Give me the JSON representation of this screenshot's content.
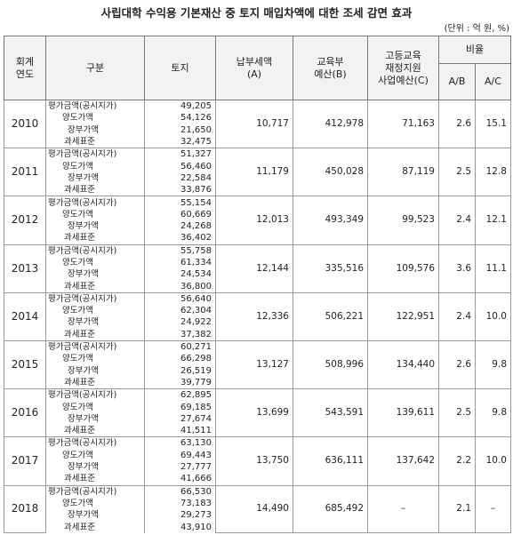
{
  "header": {
    "title": "사립대학 수익용 기본재산 중 토지 매입차액에 대한 조세 감면 효과",
    "unit": "(단위 : 억 원, %)"
  },
  "table": {
    "columns": [
      "회계\n연도",
      "구분",
      "토지",
      "납부세액\n(A)",
      "교육부\n예산(B)",
      "고등교육\n재정지원\n사업예산(C)",
      "비율",
      "A/B",
      "A/C"
    ],
    "rows": [
      {
        "year": "2010",
        "items": [
          [
            "평가금액(공시지가)",
            "49,205"
          ],
          [
            "양도가액",
            "54,126"
          ],
          [
            "장부가액",
            "21,650"
          ],
          [
            "과세표준",
            "32,475"
          ]
        ],
        "a": "10,717",
        "b": "412,978",
        "c": "71,163",
        "ab": "2.6",
        "ac": "15.1"
      },
      {
        "year": "2011",
        "items": [
          [
            "평가금액(공시지가)",
            "51,327"
          ],
          [
            "양도가액",
            "56,460"
          ],
          [
            "장부가액",
            "22,584"
          ],
          [
            "과세표준",
            "33,876"
          ]
        ],
        "a": "11,179",
        "b": "450,028",
        "c": "87,119",
        "ab": "2.5",
        "ac": "12.8"
      },
      {
        "year": "2012",
        "items": [
          [
            "평가금액(공시지가)",
            "55,154"
          ],
          [
            "양도가액",
            "60,669"
          ],
          [
            "장부가액",
            "24,268"
          ],
          [
            "과세표준",
            "36,402"
          ]
        ],
        "a": "12,013",
        "b": "493,349",
        "c": "99,523",
        "ab": "2.4",
        "ac": "12.1"
      },
      {
        "year": "2013",
        "items": [
          [
            "평가금액(공시지가)",
            "55,758"
          ],
          [
            "양도가액",
            "61,334"
          ],
          [
            "장부가액",
            "24,534"
          ],
          [
            "과세표준",
            "36,800"
          ]
        ],
        "a": "12,144",
        "b": "335,516",
        "c": "109,576",
        "ab": "3.6",
        "ac": "11.1"
      },
      {
        "year": "2014",
        "items": [
          [
            "평가금액(공시지가)",
            "56,640"
          ],
          [
            "양도가액",
            "62,304"
          ],
          [
            "장부가액",
            "24,922"
          ],
          [
            "과세표준",
            "37,382"
          ]
        ],
        "a": "12,336",
        "b": "506,221",
        "c": "122,951",
        "ab": "2.4",
        "ac": "10.0"
      },
      {
        "year": "2015",
        "items": [
          [
            "평가금액(공시지가)",
            "60,271"
          ],
          [
            "양도가액",
            "66,298"
          ],
          [
            "장부가액",
            "26,519"
          ],
          [
            "과세표준",
            "39,779"
          ]
        ],
        "a": "13,127",
        "b": "508,996",
        "c": "134,440",
        "ab": "2.6",
        "ac": "9.8"
      },
      {
        "year": "2016",
        "items": [
          [
            "평가금액(공시지가)",
            "62,895"
          ],
          [
            "양도가액",
            "69,185"
          ],
          [
            "장부가액",
            "27,674"
          ],
          [
            "과세표준",
            "41,511"
          ]
        ],
        "a": "13,699",
        "b": "543,591",
        "c": "139,611",
        "ab": "2.5",
        "ac": "9.8"
      },
      {
        "year": "2017",
        "items": [
          [
            "평가금액(공시지가)",
            "63,130"
          ],
          [
            "양도가액",
            "69,443"
          ],
          [
            "장부가액",
            "27,777"
          ],
          [
            "과세표준",
            "41,666"
          ]
        ],
        "a": "13,750",
        "b": "636,111",
        "c": "137,642",
        "ab": "2.2",
        "ac": "10.0"
      },
      {
        "year": "2018",
        "items": [
          [
            "평가금액(공시지가)",
            "66,530"
          ],
          [
            "양도가액",
            "73,183"
          ],
          [
            "장부가액",
            "29,273"
          ],
          [
            "과세표준",
            "43,910"
          ]
        ],
        "a": "14,490",
        "b": "685,492",
        "c": "–",
        "ab": "2.1",
        "ac": "–"
      }
    ]
  }
}
